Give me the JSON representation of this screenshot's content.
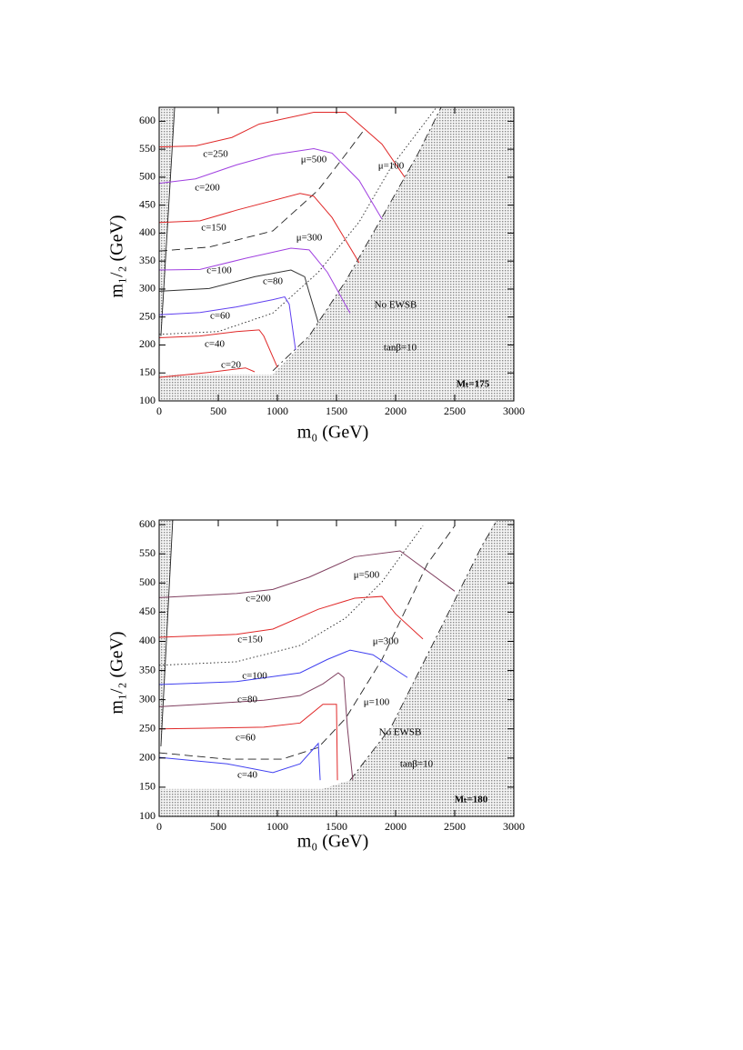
{
  "chart_data": [
    {
      "type": "line",
      "x_label": "m₀ (GeV)",
      "y_label": "m₁/₂ (GeV)",
      "xlim": [
        0,
        3000
      ],
      "ylim": [
        100,
        625
      ],
      "xticks": [
        0,
        500,
        1000,
        1500,
        2000,
        2500,
        3000
      ],
      "yticks": [
        100,
        150,
        200,
        250,
        300,
        350,
        400,
        450,
        500,
        550,
        600
      ],
      "series": [
        {
          "name": "c=250",
          "color": "#e02828",
          "x": [
            0,
            308,
            615,
            846,
            1308,
            1577,
            1885,
            2077
          ],
          "values": [
            554,
            556,
            571,
            595,
            616,
            616,
            559,
            500
          ]
        },
        {
          "name": "c=200",
          "color": "#a040e0",
          "x": [
            0,
            308,
            654,
            962,
            1308,
            1462,
            1692,
            1885
          ],
          "values": [
            489,
            497,
            522,
            540,
            551,
            543,
            494,
            425
          ]
        },
        {
          "name": "c=150",
          "color": "#e02828",
          "x": [
            0,
            346,
            654,
            1192,
            1308,
            1462,
            1692
          ],
          "values": [
            419,
            422,
            441,
            471,
            466,
            428,
            347
          ]
        },
        {
          "name": "c=100",
          "color": "#a040e0",
          "x": [
            0,
            346,
            731,
            1115,
            1269,
            1423,
            1615
          ],
          "values": [
            334,
            335,
            355,
            373,
            370,
            330,
            257
          ]
        },
        {
          "name": "c=80",
          "color": "#333333",
          "x": [
            0,
            423,
            808,
            1115,
            1231,
            1269,
            1346
          ],
          "values": [
            296,
            301,
            322,
            334,
            322,
            294,
            240
          ]
        },
        {
          "name": "c=60",
          "color": "#6040f0",
          "x": [
            0,
            346,
            654,
            962,
            1062,
            1100,
            1154
          ],
          "values": [
            254,
            258,
            268,
            281,
            286,
            273,
            191
          ]
        },
        {
          "name": "c=40",
          "color": "#e02828",
          "x": [
            0,
            346,
            654,
            846,
            885,
            1000
          ],
          "values": [
            213,
            216,
            224,
            227,
            216,
            160
          ]
        },
        {
          "name": "c=20",
          "color": "#e02828",
          "x": [
            0,
            423,
            731,
            808
          ],
          "values": [
            142,
            151,
            159,
            152
          ]
        }
      ],
      "boundaries": [
        {
          "style": "dashed",
          "x": [
            0,
            423,
            962,
            1346,
            1615,
            1731
          ],
          "values": [
            368,
            375,
            404,
            477,
            551,
            584
          ]
        },
        {
          "style": "dotted",
          "x": [
            0,
            500,
            962,
            1346,
            1692,
            1962,
            2346
          ],
          "values": [
            219,
            224,
            257,
            330,
            420,
            518,
            625
          ]
        },
        {
          "style": "dashdot",
          "x": [
            962,
            1269,
            1577,
            1885,
            2192,
            2385
          ],
          "values": [
            154,
            216,
            314,
            428,
            543,
            625
          ]
        },
        {
          "style": "solid",
          "x": [
            131,
            15
          ],
          "values": [
            625,
            216
          ]
        }
      ],
      "regions": [
        {
          "x": [
            0,
            3000,
            3000,
            0
          ],
          "values": [
            100,
            100,
            147,
            147
          ]
        },
        {
          "x": [
            0,
            0,
            131,
            15,
            0
          ],
          "values": [
            100,
            625,
            625,
            216,
            150
          ]
        },
        {
          "x": [
            962,
            1269,
            1577,
            1885,
            2192,
            2385,
            3000,
            3000
          ],
          "values": [
            147,
            216,
            314,
            428,
            543,
            625,
            625,
            147
          ]
        }
      ],
      "annotations": [
        "No EWSB",
        "tanβ=10",
        "Mₜ=175",
        "μ=500",
        "μ=300",
        "μ=100"
      ]
    },
    {
      "type": "line",
      "x_label": "m₀ (GeV)",
      "y_label": "m₁/₂ (GeV)",
      "xlim": [
        0,
        3000
      ],
      "ylim": [
        100,
        608
      ],
      "xticks": [
        0,
        500,
        1000,
        1500,
        2000,
        2500,
        3000
      ],
      "yticks": [
        100,
        150,
        200,
        250,
        300,
        350,
        400,
        450,
        500,
        550,
        600
      ],
      "series": [
        {
          "name": "c=200",
          "color": "#804060",
          "x": [
            0,
            654,
            962,
            1269,
            1654,
            2038,
            2500
          ],
          "values": [
            475,
            482,
            489,
            510,
            545,
            555,
            486
          ]
        },
        {
          "name": "c=150",
          "color": "#e02828",
          "x": [
            0,
            654,
            962,
            1346,
            1654,
            1885,
            2000,
            2231
          ],
          "values": [
            407,
            412,
            421,
            455,
            474,
            477,
            447,
            404
          ]
        },
        {
          "name": "c=100",
          "color": "#4040f0",
          "x": [
            0,
            654,
            1192,
            1423,
            1615,
            1808,
            2100
          ],
          "values": [
            326,
            331,
            346,
            369,
            385,
            377,
            338
          ]
        },
        {
          "name": "c=80",
          "color": "#804060",
          "x": [
            0,
            346,
            885,
            1192,
            1385,
            1515,
            1562,
            1592,
            1638
          ],
          "values": [
            288,
            292,
            299,
            307,
            327,
            346,
            338,
            253,
            162
          ]
        },
        {
          "name": "c=60",
          "color": "#e02828",
          "x": [
            0,
            346,
            885,
            1192,
            1385,
            1500,
            1508
          ],
          "values": [
            250,
            251,
            253,
            260,
            292,
            292,
            162
          ]
        },
        {
          "name": "c=40",
          "color": "#4040f0",
          "x": [
            0,
            577,
            962,
            1192,
            1346,
            1362
          ],
          "values": [
            201,
            190,
            175,
            190,
            225,
            162
          ]
        }
      ],
      "boundaries": [
        {
          "style": "dotted",
          "x": [
            0,
            654,
            1192,
            1577,
            1885,
            2231
          ],
          "values": [
            359,
            365,
            393,
            440,
            502,
            598
          ]
        },
        {
          "style": "dashed",
          "x": [
            0,
            577,
            1038,
            1346,
            1577,
            1885,
            2269,
            2500
          ],
          "values": [
            209,
            198,
            198,
            218,
            268,
            369,
            533,
            598
          ]
        },
        {
          "style": "dashdot",
          "x": [
            1615,
            1962,
            2346,
            2731,
            2846
          ],
          "values": [
            162,
            253,
            408,
            564,
            603
          ]
        },
        {
          "style": "solid",
          "x": [
            115,
            15
          ],
          "values": [
            608,
            220
          ]
        }
      ],
      "regions": [
        {
          "x": [
            0,
            3000,
            3000,
            0
          ],
          "values": [
            100,
            100,
            147,
            147
          ]
        },
        {
          "x": [
            0,
            0,
            115,
            15,
            0
          ],
          "values": [
            100,
            608,
            608,
            220,
            180
          ]
        },
        {
          "x": [
            1380,
            1615,
            1962,
            2346,
            2731,
            2846,
            3000,
            3000
          ],
          "values": [
            147,
            162,
            253,
            408,
            564,
            608,
            608,
            147
          ]
        }
      ],
      "annotations": [
        "No EWSB",
        "tanβ=10",
        "Mₜ=180",
        "μ=500",
        "μ=300",
        "μ=100"
      ]
    }
  ]
}
